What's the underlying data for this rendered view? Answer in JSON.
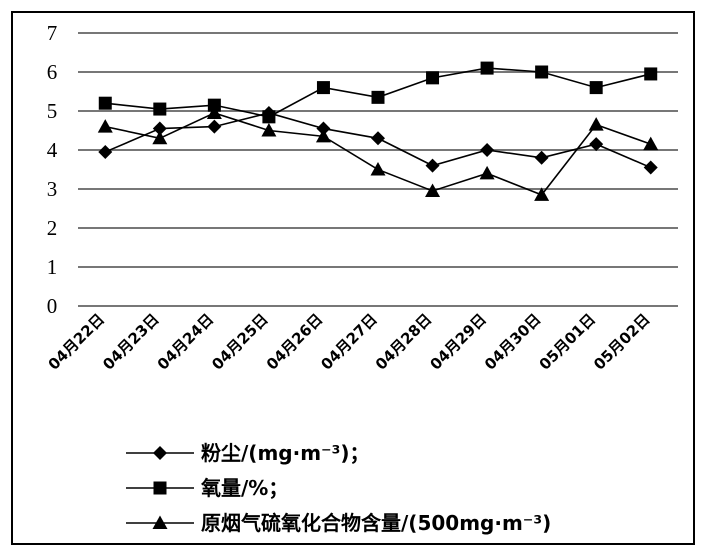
{
  "chart_data": {
    "type": "line",
    "title": "",
    "xlabel": "",
    "ylabel": "",
    "ylim": [
      0,
      7
    ],
    "yticks": [
      0,
      1,
      2,
      3,
      4,
      5,
      6,
      7
    ],
    "grid": "horizontal",
    "legend_position": "bottom",
    "categories": [
      "04月22日",
      "04月23日",
      "04月24日",
      "04月25日",
      "04月26日",
      "04月27日",
      "04月28日",
      "04月29日",
      "04月30日",
      "05月01日",
      "05月02日"
    ],
    "series": [
      {
        "name": "粉尘/(mg·m⁻³)；",
        "marker": "diamond",
        "color": "#000000",
        "values": [
          3.95,
          4.55,
          4.6,
          4.95,
          4.55,
          4.3,
          3.6,
          4.0,
          3.8,
          4.15,
          3.55
        ]
      },
      {
        "name": "氧量/%；",
        "marker": "square",
        "color": "#000000",
        "values": [
          5.2,
          5.05,
          5.15,
          4.85,
          5.6,
          5.35,
          5.85,
          6.1,
          6.0,
          5.6,
          5.95
        ]
      },
      {
        "name": "原烟气硫氧化合物含量/(500mg·m⁻³)",
        "marker": "triangle",
        "color": "#000000",
        "values": [
          4.6,
          4.3,
          4.95,
          4.5,
          4.35,
          3.5,
          2.95,
          3.4,
          2.85,
          4.65,
          4.15
        ]
      }
    ]
  }
}
